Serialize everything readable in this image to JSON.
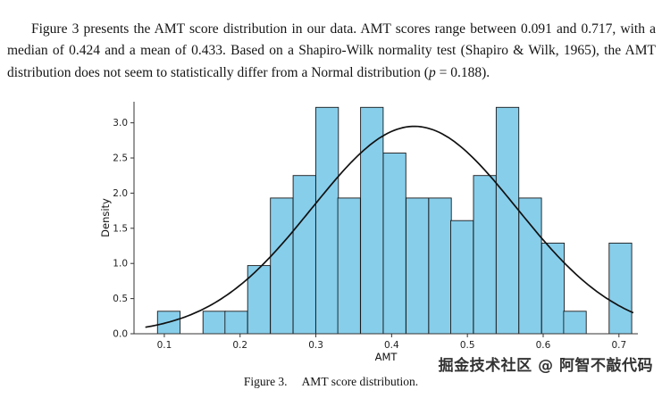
{
  "paragraph": {
    "text_before_p": "Figure 3 presents the AMT score distribution in our data. AMT scores range between 0.091 and 0.717, with a median of 0.424 and a mean of 0.433. Based on a Shapiro-Wilk normality test (Shapiro & Wilk, 1965), the AMT distribution does not seem to statistically differ from a Normal distribution (",
    "p_symbol": "p",
    "text_after_p": " = 0.188)."
  },
  "caption": {
    "label": "Figure 3.",
    "text": "AMT score distribution."
  },
  "watermark": {
    "text": "掘金技术社区 @ 阿智不敲代码"
  },
  "chart_data": {
    "type": "bar",
    "subtype": "histogram-with-density-curve",
    "title": "",
    "xlabel": "AMT",
    "ylabel": "Density",
    "xlim": [
      0.06,
      0.725
    ],
    "ylim": [
      0,
      3.3
    ],
    "x_ticks": [
      0.1,
      0.2,
      0.3,
      0.4,
      0.5,
      0.6,
      0.7
    ],
    "y_ticks": [
      0.0,
      0.5,
      1.0,
      1.5,
      2.0,
      2.5,
      3.0
    ],
    "grid": false,
    "legend": false,
    "bar_color": "#87ceeb",
    "bar_edge_color": "#1a1a1a",
    "curve_color": "#111111",
    "bin_width": 0.0298,
    "bins": [
      {
        "x": 0.091,
        "h": 0.32
      },
      {
        "x": 0.121,
        "h": 0
      },
      {
        "x": 0.151,
        "h": 0.32
      },
      {
        "x": 0.18,
        "h": 0.32
      },
      {
        "x": 0.21,
        "h": 0.97
      },
      {
        "x": 0.24,
        "h": 1.93
      },
      {
        "x": 0.27,
        "h": 2.25
      },
      {
        "x": 0.3,
        "h": 3.22
      },
      {
        "x": 0.329,
        "h": 1.93
      },
      {
        "x": 0.359,
        "h": 3.22
      },
      {
        "x": 0.389,
        "h": 2.57
      },
      {
        "x": 0.419,
        "h": 1.93
      },
      {
        "x": 0.449,
        "h": 1.93
      },
      {
        "x": 0.478,
        "h": 1.61
      },
      {
        "x": 0.508,
        "h": 2.25
      },
      {
        "x": 0.538,
        "h": 3.22
      },
      {
        "x": 0.568,
        "h": 1.93
      },
      {
        "x": 0.598,
        "h": 1.29
      },
      {
        "x": 0.627,
        "h": 0.32
      },
      {
        "x": 0.657,
        "h": 0
      },
      {
        "x": 0.687,
        "h": 1.29
      }
    ],
    "curve": {
      "shape": "normal",
      "mean": 0.43,
      "sd": 0.135,
      "peak": 2.95,
      "x_start": 0.075,
      "x_end": 0.72
    },
    "stats_shown_in_text": {
      "min": 0.091,
      "max": 0.717,
      "median": 0.424,
      "mean": 0.433,
      "shapiro_wilk_p": 0.188
    }
  }
}
